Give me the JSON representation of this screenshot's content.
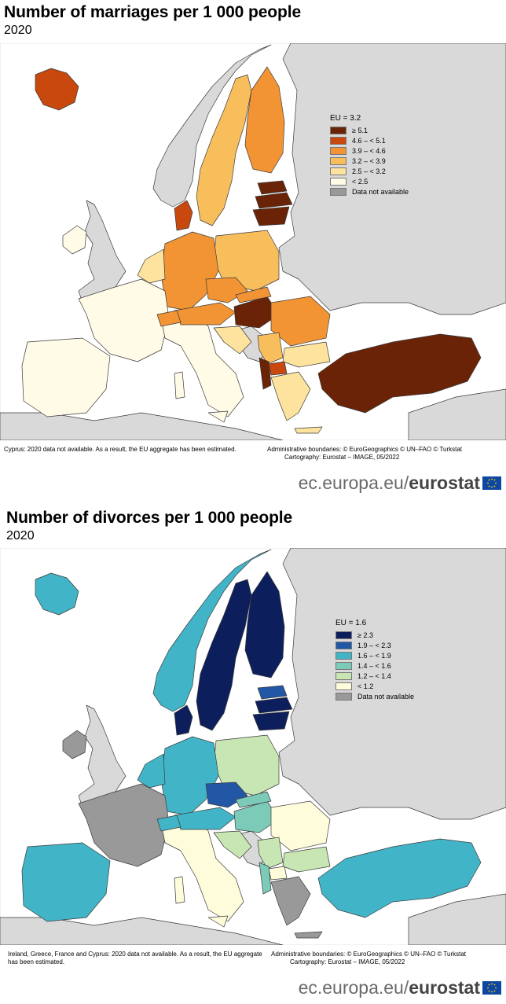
{
  "maps": [
    {
      "title": "Number of marriages per 1 000 people",
      "subtitle": "2020",
      "legend": {
        "heading": "EU = 3.2",
        "classes": [
          {
            "label": "≥ 5.1",
            "color": "#6b2308"
          },
          {
            "label": "4.6 – < 5.1",
            "color": "#c8480e"
          },
          {
            "label": "3.9 – < 4.6",
            "color": "#f39434"
          },
          {
            "label": "3.2 – < 3.9",
            "color": "#f9be5c"
          },
          {
            "label": "2.5 – < 3.2",
            "color": "#fde39e"
          },
          {
            "label": "< 2.5",
            "color": "#fffbe6"
          },
          {
            "label": "Data not available",
            "color": "#999999"
          }
        ]
      },
      "footnote": "Cyprus: 2020 data not available. As a result, the EU aggregate has been estimated.",
      "credits": [
        "Administrative boundaries: © EuroGeographics © UN–FAO © Turkstat",
        "Cartography: Eurostat – IMAGE, 05/2022"
      ],
      "brand": {
        "prefix": "ec.europa.eu/",
        "name": "eurostat"
      }
    },
    {
      "title": "Number of divorces per 1 000 people",
      "subtitle": "2020",
      "legend": {
        "heading": "EU = 1.6",
        "classes": [
          {
            "label": "≥ 2.3",
            "color": "#0c1f5c"
          },
          {
            "label": "1.9 – < 2.3",
            "color": "#2257a6"
          },
          {
            "label": "1.6 – < 1.9",
            "color": "#41b5c7"
          },
          {
            "label": "1.4 – < 1.6",
            "color": "#7ccbb9"
          },
          {
            "label": "1.2 – < 1.4",
            "color": "#c8e6b4"
          },
          {
            "label": "< 1.2",
            "color": "#fffcdc"
          },
          {
            "label": "Data not available",
            "color": "#999999"
          }
        ]
      },
      "footnote": "Ireland, Greece, France and Cyprus: 2020 data not available. As a result, the EU aggregate has been estimated.",
      "credits": [
        "Administrative boundaries: © EuroGeographics © UN–FAO © Turkstat",
        "Cartography: Eurostat – IMAGE, 05/2022"
      ],
      "brand": {
        "prefix": "ec.europa.eu/",
        "name": "eurostat"
      }
    }
  ],
  "colors": {
    "sea": "#ffffff",
    "nonEU": "#d9d9d9",
    "border": "#3a3a3a",
    "flag": "#0e47a1",
    "stars": "#ffd400"
  }
}
